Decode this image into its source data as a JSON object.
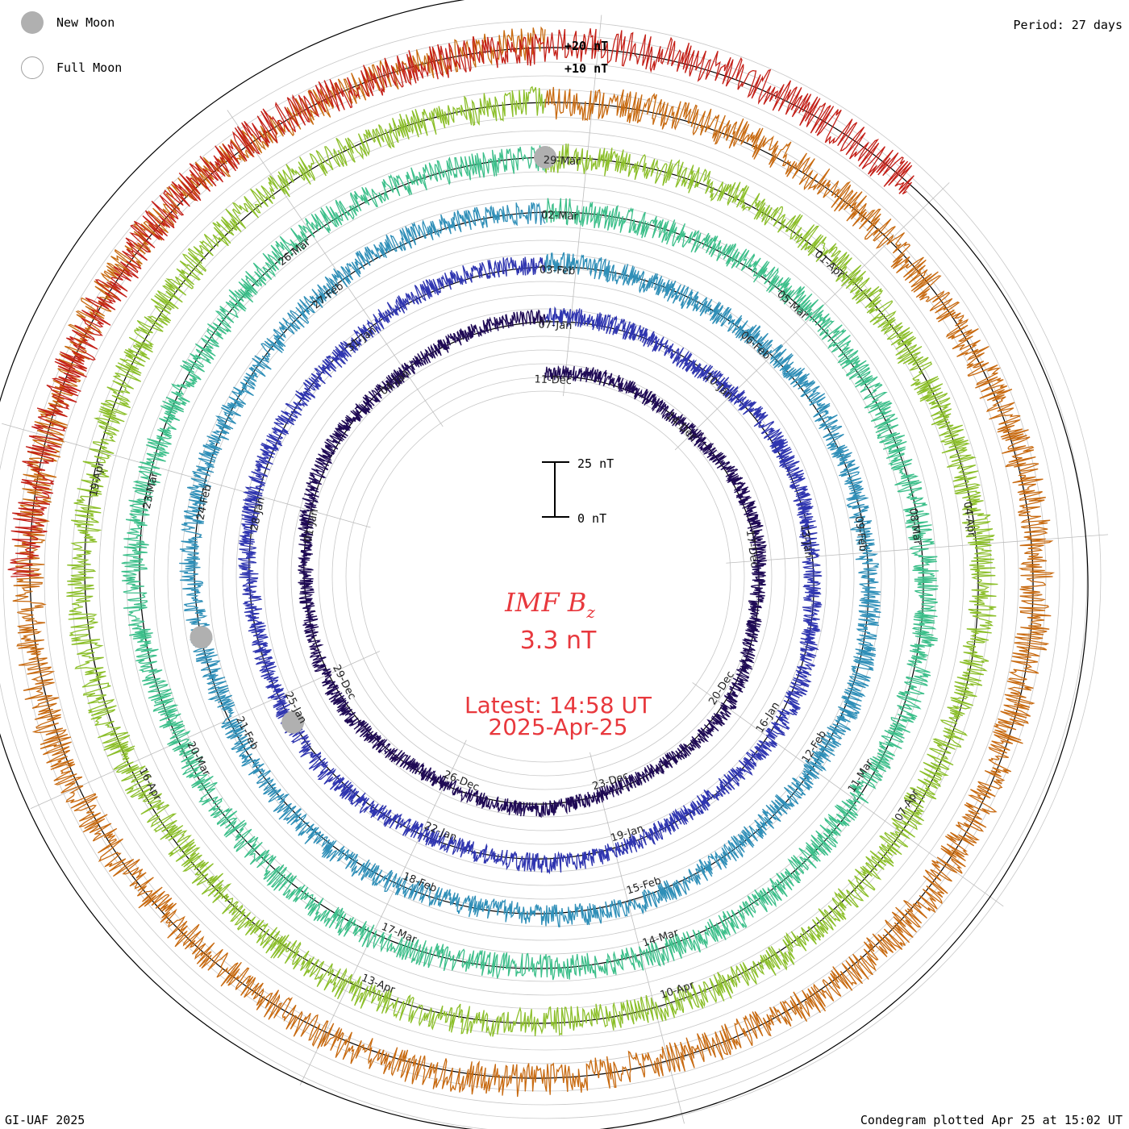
{
  "legend": {
    "new_moon": "New Moon",
    "full_moon": "Full Moon"
  },
  "header": {
    "period": "Period: 27 days"
  },
  "footer": {
    "credit": "GI-UAF 2025",
    "plotted": "Condegram plotted Apr 25 at 15:02 UT"
  },
  "chart_data": {
    "type": "condegram",
    "title": "IMF B",
    "title_subscript": "z",
    "current_value": "3.3 nT",
    "latest_label": "Latest: 14:58 UT",
    "latest_date": "2025-Apr-25",
    "period_days": 27,
    "scale_bar": {
      "top": "25 nT",
      "bottom": "0 nT"
    },
    "ring_scale": [
      "+20 nT",
      "+10 nT"
    ],
    "rings": [
      {
        "color": "#1f0a55",
        "labels": [
          "11-Dec",
          "14-Dec",
          "17-Dec",
          "20-Dec",
          "23-Dec",
          "26-Dec",
          "29-Dec",
          "01-Jan",
          "04-Jan"
        ]
      },
      {
        "color": "#2f35b0",
        "labels": [
          "07-Jan",
          "10-Jan",
          "13-Jan",
          "16-Jan",
          "19-Jan",
          "22-Jan",
          "25-Jan",
          "28-Jan",
          "31-Jan"
        ]
      },
      {
        "color": "#2f8fb8",
        "labels": [
          "03-Feb",
          "06-Feb",
          "09-Feb",
          "12-Feb",
          "15-Feb",
          "18-Feb",
          "21-Feb",
          "24-Feb",
          "27-Feb"
        ]
      },
      {
        "color": "#3cbf8a",
        "labels": [
          "02-Mar",
          "05-Mar",
          "08-Mar",
          "11-Mar",
          "14-Mar",
          "17-Mar",
          "20-Mar",
          "23-Mar",
          "26-Mar"
        ]
      },
      {
        "color": "#8cbf2a",
        "labels": [
          "29-Mar",
          "01-Apr",
          "04-Apr",
          "07-Apr",
          "10-Apr",
          "13-Apr",
          "16-Apr",
          "19-Apr",
          ""
        ]
      },
      {
        "color": "#c86a10",
        "labels": []
      },
      {
        "color": "#c42018",
        "labels": []
      }
    ],
    "moons": [
      {
        "phase": "new",
        "ring": 4,
        "day": 0
      },
      {
        "phase": "new",
        "ring": 2,
        "day": 19.5
      },
      {
        "phase": "new",
        "ring": 1,
        "day": 18
      }
    ]
  }
}
